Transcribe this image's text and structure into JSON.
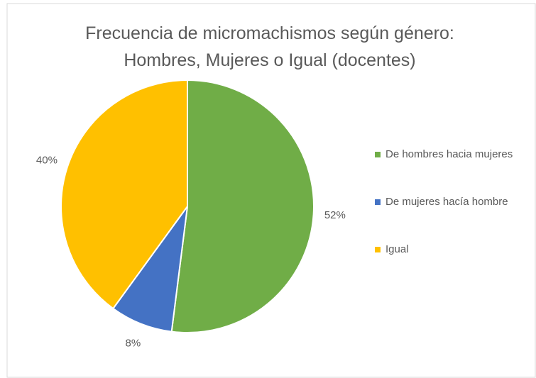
{
  "chart_data": {
    "type": "pie",
    "title": "Frecuencia de micromachismos según género: Hombres, Mujeres o Igual (docentes)",
    "categories": [
      "De hombres hacia mujeres",
      "De mujeres hacía hombre",
      "Igual"
    ],
    "values": [
      52,
      8,
      40
    ],
    "value_labels": [
      "52%",
      "8%",
      "40%"
    ],
    "colors": [
      "#70ad47",
      "#4472c4",
      "#ffc000"
    ],
    "legend": "right"
  }
}
